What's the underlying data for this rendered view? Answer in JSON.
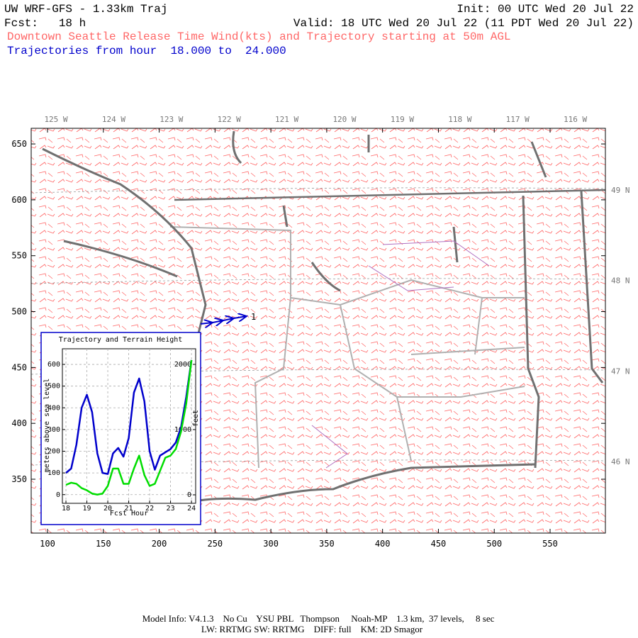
{
  "header": {
    "model": "UW WRF-GFS - 1.33km Traj",
    "init": "Init: 00 UTC Wed 20 Jul 22",
    "fcst": "Fcst:   18 h",
    "valid": "Valid: 18 UTC Wed 20 Jul 22 (11 PDT Wed 20 Jul 22)",
    "description": "Downtown Seattle Release Time Wind(kts) and Trajectory starting at 50m AGL",
    "trajectory_range": "Trajectories from hour  18.000 to  24.000"
  },
  "map": {
    "xlim": [
      85.4,
      599.5
    ],
    "xticks": [
      100,
      150,
      200,
      250,
      300,
      350,
      400,
      450,
      500,
      550
    ],
    "ylim": [
      301.8,
      664
    ],
    "yticks": [
      350,
      400,
      450,
      500,
      550,
      600,
      650
    ],
    "longitudes": [
      "125 W",
      "124 W",
      "123 W",
      "122 W",
      "121 W",
      "120 W",
      "119 W",
      "118 W",
      "117 W",
      "116 W"
    ],
    "latitudes": [
      "49 N",
      "48 N",
      "47 N",
      "46 N"
    ],
    "trajectory": {
      "label": "1",
      "color": "#0000cc",
      "x": [
        237.1,
        247.9,
        257.4,
        266.9,
        278.3
      ],
      "y": [
        489.0,
        490.2,
        492.1,
        494.0,
        495.9
      ]
    }
  },
  "chart_data": {
    "type": "line",
    "title": "Trajectory and Terrain Height",
    "xlabel": "Fcst Hour",
    "ylabel": "meters above sea level",
    "y2label": "feet",
    "x": [
      18,
      18.25,
      18.5,
      18.75,
      19,
      19.25,
      19.5,
      19.75,
      20,
      20.25,
      20.5,
      20.75,
      21,
      21.25,
      21.5,
      21.75,
      22,
      22.25,
      22.5,
      22.75,
      23,
      23.25,
      23.5,
      23.75,
      24
    ],
    "xlim": [
      17.83,
      24.2
    ],
    "xticks": [
      18,
      19,
      20,
      21,
      22,
      23,
      24
    ],
    "ylim": [
      -40,
      672
    ],
    "yticks": [
      0,
      100,
      200,
      300,
      400,
      500,
      600
    ],
    "y2lim": [
      -130,
      2239
    ],
    "y2ticks": [
      0,
      1000,
      2000
    ],
    "grid": true,
    "series": [
      {
        "color": "#0000cc",
        "values": [
          100,
          120,
          230,
          400,
          460,
          380,
          190,
          100,
          95,
          190,
          215,
          175,
          260,
          470,
          535,
          430,
          200,
          115,
          180,
          195,
          210,
          240,
          310,
          450,
          620
        ]
      },
      {
        "color": "#00dd00",
        "values": [
          45,
          55,
          50,
          30,
          20,
          5,
          0,
          5,
          40,
          120,
          120,
          50,
          50,
          120,
          180,
          90,
          40,
          50,
          110,
          170,
          180,
          210,
          290,
          420,
          620
        ]
      }
    ]
  },
  "footer": {
    "line1": "Model Info: V4.1.3    No Cu    YSU PBL   Thompson     Noah-MP    1.3 km,  37 levels,     8 sec",
    "line2": "LW: RRTMG SW: RRTMG    DIFF: full    KM: 2D Smagor"
  }
}
